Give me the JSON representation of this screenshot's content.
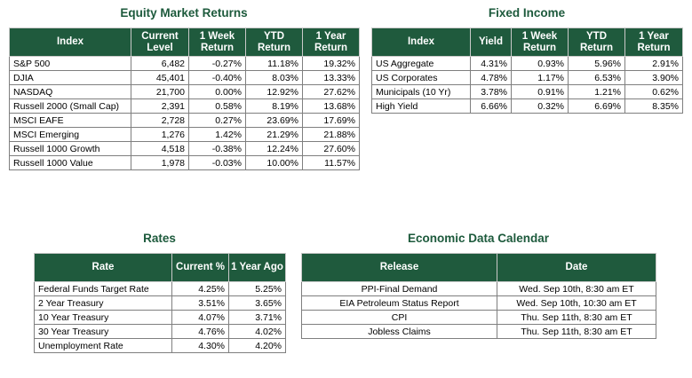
{
  "equity": {
    "title": "Equity Market Returns",
    "headers": [
      "Index",
      "Current Level",
      "1 Week Return",
      "YTD Return",
      "1 Year Return"
    ],
    "rows": [
      [
        "S&P 500",
        "6,482",
        "-0.27%",
        "11.18%",
        "19.32%"
      ],
      [
        "DJIA",
        "45,401",
        "-0.40%",
        "8.03%",
        "13.33%"
      ],
      [
        "NASDAQ",
        "21,700",
        "0.00%",
        "12.92%",
        "27.62%"
      ],
      [
        "Russell 2000 (Small Cap)",
        "2,391",
        "0.58%",
        "8.19%",
        "13.68%"
      ],
      [
        "MSCI EAFE",
        "2,728",
        "0.27%",
        "23.69%",
        "17.69%"
      ],
      [
        "MSCI Emerging",
        "1,276",
        "1.42%",
        "21.29%",
        "21.88%"
      ],
      [
        "Russell 1000 Growth",
        "4,518",
        "-0.38%",
        "12.24%",
        "27.60%"
      ],
      [
        "Russell 1000 Value",
        "1,978",
        "-0.03%",
        "10.00%",
        "11.57%"
      ]
    ]
  },
  "fixed_income": {
    "title": "Fixed Income",
    "headers": [
      "Index",
      "Yield",
      "1 Week Return",
      "YTD Return",
      "1 Year Return"
    ],
    "rows": [
      [
        "US Aggregate",
        "4.31%",
        "0.93%",
        "5.96%",
        "2.91%"
      ],
      [
        "US Corporates",
        "4.78%",
        "1.17%",
        "6.53%",
        "3.90%"
      ],
      [
        "Municipals (10 Yr)",
        "3.78%",
        "0.91%",
        "1.21%",
        "0.62%"
      ],
      [
        "High Yield",
        "6.66%",
        "0.32%",
        "6.69%",
        "8.35%"
      ]
    ]
  },
  "rates": {
    "title": "Rates",
    "headers": [
      "Rate",
      "Current %",
      "1 Year Ago"
    ],
    "rows": [
      [
        "Federal Funds Target Rate",
        "4.25%",
        "5.25%"
      ],
      [
        "2 Year Treasury",
        "3.51%",
        "3.65%"
      ],
      [
        "10 Year Treasury",
        "4.07%",
        "3.71%"
      ],
      [
        "30 Year Treasury",
        "4.76%",
        "4.02%"
      ],
      [
        "Unemployment Rate",
        "4.30%",
        "4.20%"
      ]
    ]
  },
  "calendar": {
    "title": "Economic Data Calendar",
    "headers": [
      "Release",
      "Date"
    ],
    "rows": [
      [
        "PPI-Final Demand",
        "Wed. Sep 10th, 8:30 am ET"
      ],
      [
        "EIA Petroleum Status Report",
        "Wed. Sep 10th, 10:30 am ET"
      ],
      [
        "CPI",
        "Thu. Sep 11th, 8:30 am ET"
      ],
      [
        "Jobless Claims",
        "Thu. Sep 11th, 8:30 am ET"
      ]
    ]
  },
  "colors": {
    "header_bg": "#1f5a3d",
    "title_text": "#1d5a3c"
  }
}
